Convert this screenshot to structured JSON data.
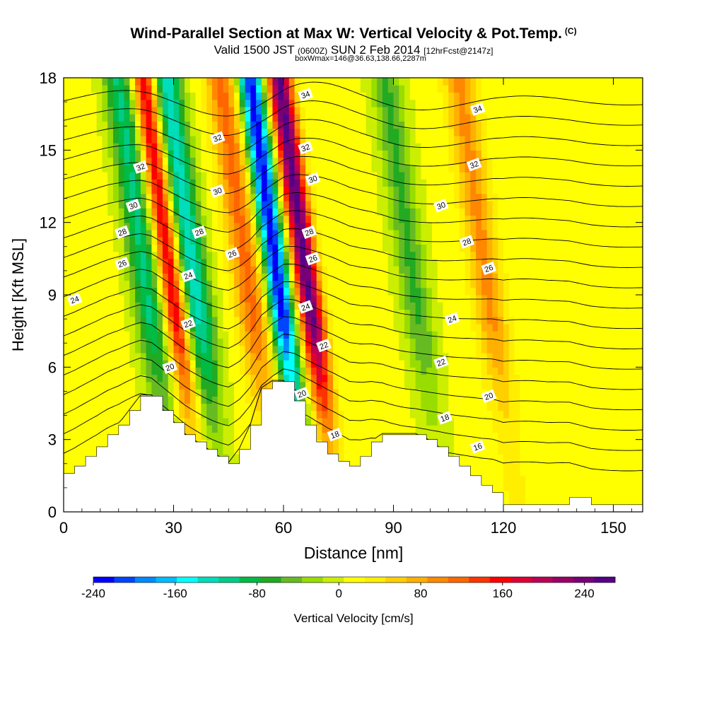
{
  "header": {
    "title": "Wind-Parallel Section at Max W: Vertical Velocity & Pot.Temp.",
    "title_mark": "(C)",
    "valid_prefix": "Valid 1500 JST",
    "valid_utc": "(0600Z)",
    "valid_date": "SUN 2 Feb 2014",
    "forecast": "[12hrFcst@2147z]",
    "boxwmax": "boxWmax=146@36.63,138.66,2287m"
  },
  "chart_data": {
    "type": "heatmap",
    "xlabel": "Distance [nm]",
    "ylabel": "Height [Kft MSL]",
    "xlim": [
      0,
      158
    ],
    "ylim": [
      0,
      18
    ],
    "xticks": [
      0,
      30,
      60,
      90,
      120,
      150
    ],
    "yticks": [
      0,
      3,
      6,
      9,
      12,
      15,
      18
    ],
    "colorbar": {
      "label": "Vertical Velocity [cm/s]",
      "min": -240,
      "max": 270,
      "step": 20,
      "tick_values": [
        -240,
        -160,
        -80,
        0,
        80,
        160,
        240
      ],
      "tick_labels": [
        "-240",
        "-160",
        "-80",
        "0",
        "80",
        "160",
        "240"
      ],
      "colors": [
        "#0000ff",
        "#0044ff",
        "#0088ff",
        "#00bbff",
        "#00ffff",
        "#00ddbb",
        "#00cc88",
        "#00bb44",
        "#22aa22",
        "#66bb22",
        "#99dd00",
        "#ccee00",
        "#ffff00",
        "#ffee00",
        "#ffd000",
        "#ffb000",
        "#ff8800",
        "#ff6600",
        "#ff3300",
        "#ff0000",
        "#dd0033",
        "#bb0055",
        "#990066",
        "#770077",
        "#550088"
      ]
    },
    "updrafts": [
      {
        "center_nm": 29,
        "peak_cms": 170
      },
      {
        "center_nm": 50,
        "peak_cms": 100
      },
      {
        "center_nm": 66,
        "peak_cms": 240
      },
      {
        "center_nm": 115,
        "peak_cms": 80
      }
    ],
    "downdrafts": [
      {
        "center_nm": 22,
        "peak_cms": -110
      },
      {
        "center_nm": 35,
        "peak_cms": -140
      },
      {
        "center_nm": 58,
        "peak_cms": -240
      },
      {
        "center_nm": 95,
        "peak_cms": -70
      }
    ],
    "terrain": [
      {
        "x": 0,
        "h": 1.6
      },
      {
        "x": 3,
        "h": 1.9
      },
      {
        "x": 6,
        "h": 2.3
      },
      {
        "x": 9,
        "h": 2.7
      },
      {
        "x": 12,
        "h": 3.2
      },
      {
        "x": 15,
        "h": 3.6
      },
      {
        "x": 18,
        "h": 4.2
      },
      {
        "x": 21,
        "h": 4.8
      },
      {
        "x": 24,
        "h": 4.8
      },
      {
        "x": 27,
        "h": 4.2
      },
      {
        "x": 30,
        "h": 3.7
      },
      {
        "x": 33,
        "h": 3.2
      },
      {
        "x": 36,
        "h": 2.9
      },
      {
        "x": 39,
        "h": 2.6
      },
      {
        "x": 42,
        "h": 2.3
      },
      {
        "x": 45,
        "h": 2.0
      },
      {
        "x": 48,
        "h": 2.6
      },
      {
        "x": 51,
        "h": 3.6
      },
      {
        "x": 54,
        "h": 5.1
      },
      {
        "x": 57,
        "h": 5.4
      },
      {
        "x": 60,
        "h": 5.4
      },
      {
        "x": 63,
        "h": 4.6
      },
      {
        "x": 66,
        "h": 3.6
      },
      {
        "x": 69,
        "h": 2.9
      },
      {
        "x": 72,
        "h": 2.4
      },
      {
        "x": 75,
        "h": 2.1
      },
      {
        "x": 78,
        "h": 1.9
      },
      {
        "x": 81,
        "h": 2.3
      },
      {
        "x": 84,
        "h": 2.9
      },
      {
        "x": 87,
        "h": 3.2
      },
      {
        "x": 90,
        "h": 3.2
      },
      {
        "x": 93,
        "h": 3.2
      },
      {
        "x": 96,
        "h": 3.2
      },
      {
        "x": 99,
        "h": 3.0
      },
      {
        "x": 102,
        "h": 2.7
      },
      {
        "x": 105,
        "h": 2.3
      },
      {
        "x": 108,
        "h": 1.9
      },
      {
        "x": 111,
        "h": 1.5
      },
      {
        "x": 114,
        "h": 1.1
      },
      {
        "x": 117,
        "h": 0.8
      },
      {
        "x": 120,
        "h": 0.3
      },
      {
        "x": 126,
        "h": 0.3
      },
      {
        "x": 132,
        "h": 0.3
      },
      {
        "x": 138,
        "h": 0.6
      },
      {
        "x": 144,
        "h": 0.3
      },
      {
        "x": 150,
        "h": 0.3
      },
      {
        "x": 158,
        "h": 0.3
      }
    ],
    "isentropes": {
      "levels": [
        16,
        17,
        18,
        19,
        20,
        21,
        22,
        23,
        24,
        25,
        26,
        27,
        28,
        29,
        30,
        31,
        32,
        33,
        34
      ],
      "labels": [
        {
          "text": "34",
          "x": 66,
          "y": 17.3
        },
        {
          "text": "34",
          "x": 113,
          "y": 16.7
        },
        {
          "text": "32",
          "x": 42,
          "y": 15.5
        },
        {
          "text": "32",
          "x": 66,
          "y": 15.1
        },
        {
          "text": "32",
          "x": 112,
          "y": 14.4
        },
        {
          "text": "32",
          "x": 21,
          "y": 14.3
        },
        {
          "text": "30",
          "x": 42,
          "y": 13.3
        },
        {
          "text": "30",
          "x": 68,
          "y": 13.8
        },
        {
          "text": "30",
          "x": 103,
          "y": 12.7
        },
        {
          "text": "30",
          "x": 19,
          "y": 12.7
        },
        {
          "text": "28",
          "x": 16,
          "y": 11.6
        },
        {
          "text": "28",
          "x": 37,
          "y": 11.6
        },
        {
          "text": "28",
          "x": 67,
          "y": 11.6
        },
        {
          "text": "28",
          "x": 110,
          "y": 11.2
        },
        {
          "text": "26",
          "x": 16,
          "y": 10.3
        },
        {
          "text": "26",
          "x": 46,
          "y": 10.7
        },
        {
          "text": "26",
          "x": 68,
          "y": 10.5
        },
        {
          "text": "26",
          "x": 116,
          "y": 10.1
        },
        {
          "text": "24",
          "x": 3,
          "y": 8.8
        },
        {
          "text": "24",
          "x": 34,
          "y": 9.8
        },
        {
          "text": "24",
          "x": 66,
          "y": 8.5
        },
        {
          "text": "24",
          "x": 106,
          "y": 8.0
        },
        {
          "text": "22",
          "x": 34,
          "y": 7.8
        },
        {
          "text": "22",
          "x": 71,
          "y": 6.9
        },
        {
          "text": "22",
          "x": 103,
          "y": 6.2
        },
        {
          "text": "20",
          "x": 29,
          "y": 6.0
        },
        {
          "text": "20",
          "x": 65,
          "y": 4.9
        },
        {
          "text": "20",
          "x": 116,
          "y": 4.8
        },
        {
          "text": "18",
          "x": 74,
          "y": 3.2
        },
        {
          "text": "18",
          "x": 104,
          "y": 3.9
        },
        {
          "text": "16",
          "x": 113,
          "y": 2.7
        }
      ]
    }
  }
}
